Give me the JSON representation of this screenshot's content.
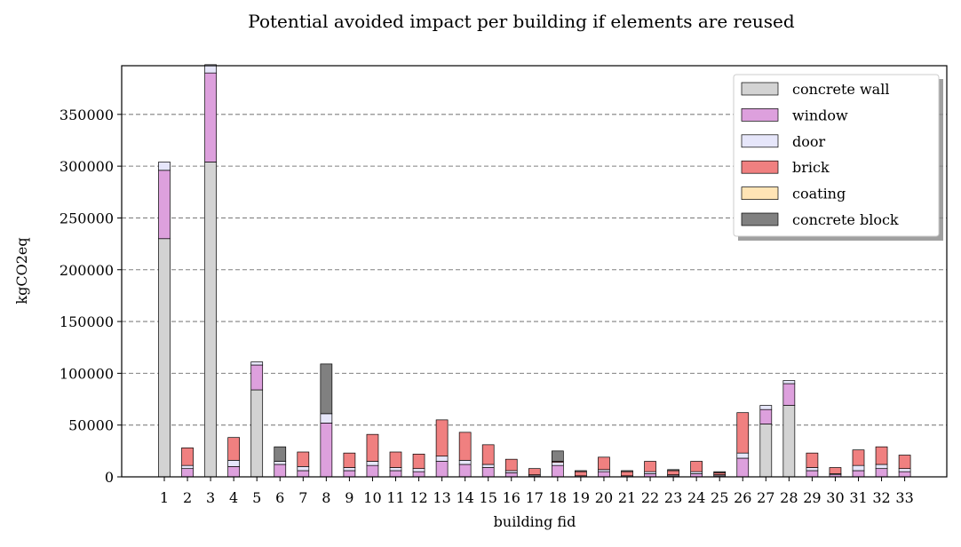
{
  "chart_data": {
    "type": "bar",
    "stacked": true,
    "title": "Potential avoided impact per building if elements are reused",
    "xlabel": "building fid",
    "ylabel": "kgCO2eq",
    "ylim": [
      0,
      397000
    ],
    "yticks": [
      0,
      50000,
      100000,
      150000,
      200000,
      250000,
      300000,
      350000
    ],
    "grid": "horizontal dashed",
    "legend_position": "top-right",
    "categories": [
      "1",
      "2",
      "3",
      "4",
      "5",
      "6",
      "7",
      "8",
      "9",
      "10",
      "11",
      "12",
      "13",
      "14",
      "15",
      "16",
      "17",
      "18",
      "19",
      "20",
      "21",
      "22",
      "23",
      "24",
      "25",
      "26",
      "27",
      "28",
      "29",
      "30",
      "31",
      "32",
      "33"
    ],
    "series": [
      {
        "name": "concrete wall",
        "color": "#d3d3d3",
        "values": [
          230000,
          0,
          304000,
          0,
          84000,
          0,
          0,
          0,
          0,
          0,
          0,
          0,
          0,
          0,
          0,
          0,
          0,
          0,
          0,
          0,
          0,
          0,
          0,
          0,
          0,
          0,
          51000,
          69000,
          0,
          0,
          0,
          0,
          0
        ]
      },
      {
        "name": "window",
        "color": "#dda0dd",
        "values": [
          66000,
          8000,
          86000,
          10000,
          24000,
          12000,
          6000,
          52000,
          6000,
          11000,
          6000,
          5000,
          15000,
          12000,
          9000,
          4000,
          1000,
          11000,
          0,
          5000,
          0,
          3000,
          1000,
          3000,
          1000,
          18000,
          14000,
          21000,
          6000,
          2000,
          6000,
          8000,
          5000
        ]
      },
      {
        "name": "door",
        "color": "#e6e6fa",
        "values": [
          8000,
          3000,
          8000,
          6000,
          3000,
          3000,
          4000,
          9000,
          3000,
          4000,
          3000,
          3000,
          5000,
          4000,
          3000,
          2000,
          1000,
          3000,
          1000,
          2000,
          1000,
          2000,
          1000,
          2000,
          1000,
          5000,
          4000,
          3000,
          3000,
          1000,
          5000,
          4000,
          3000
        ]
      },
      {
        "name": "brick",
        "color": "#f08080",
        "values": [
          0,
          17000,
          0,
          22000,
          0,
          0,
          14000,
          0,
          14000,
          26000,
          15000,
          14000,
          35000,
          27000,
          19000,
          11000,
          6000,
          1000,
          4000,
          12000,
          4000,
          10000,
          4000,
          10000,
          2000,
          39000,
          0,
          0,
          14000,
          6000,
          15000,
          17000,
          13000
        ]
      },
      {
        "name": "coating",
        "color": "#ffe4b5",
        "values": [
          0,
          0,
          0,
          0,
          0,
          0,
          0,
          0,
          0,
          0,
          0,
          0,
          0,
          0,
          0,
          0,
          0,
          0,
          0,
          0,
          0,
          0,
          0,
          0,
          0,
          0,
          0,
          0,
          0,
          0,
          0,
          0,
          0
        ]
      },
      {
        "name": "concrete block",
        "color": "#808080",
        "values": [
          0,
          0,
          0,
          0,
          0,
          14000,
          0,
          48000,
          0,
          0,
          0,
          0,
          0,
          0,
          0,
          0,
          0,
          10000,
          1000,
          0,
          1000,
          0,
          1000,
          0,
          1000,
          0,
          0,
          0,
          0,
          0,
          0,
          0,
          0
        ]
      }
    ]
  }
}
